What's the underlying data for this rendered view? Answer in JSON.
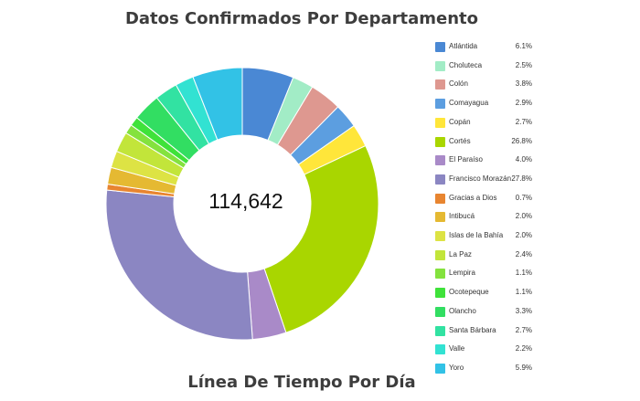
{
  "page": {
    "title": "Datos Confirmados Por Departamento",
    "section_title": "Línea De Tiempo Por Día",
    "center_total": "114,642"
  },
  "chart_data": {
    "type": "pie",
    "donut": true,
    "title": "Datos Confirmados Por Departamento",
    "center_label": "114,642",
    "legend_position": "right",
    "categories": [
      "Atlántida",
      "Choluteca",
      "Colón",
      "Comayagua",
      "Copán",
      "Cortés",
      "El Paraíso",
      "Francisco Morazán",
      "Gracias a Dios",
      "Intibucá",
      "Islas de la Bahía",
      "La Paz",
      "Lempira",
      "Ocotepeque",
      "Olancho",
      "Santa Bárbara",
      "Valle",
      "Yoro"
    ],
    "values": [
      6.1,
      2.5,
      3.8,
      2.9,
      2.7,
      26.8,
      4.0,
      27.8,
      0.7,
      2.0,
      2.0,
      2.4,
      1.1,
      1.1,
      3.3,
      2.7,
      2.2,
      5.9
    ],
    "labels": [
      "6.1%",
      "2.5%",
      "3.8%",
      "2.9%",
      "2.7%",
      "26.8%",
      "4.0%",
      "27.8%",
      "0.7%",
      "2.0%",
      "2.0%",
      "2.4%",
      "1.1%",
      "1.1%",
      "3.3%",
      "2.7%",
      "2.2%",
      "5.9%"
    ],
    "colors": [
      "#4a88d4",
      "#a2ecc6",
      "#de9890",
      "#5c9ee0",
      "#ffe63a",
      "#a9d600",
      "#a98ac8",
      "#8b86c2",
      "#e88530",
      "#e5b932",
      "#dde344",
      "#c2e53a",
      "#84e23e",
      "#3fe23a",
      "#32de62",
      "#32e2a2",
      "#32e2d2",
      "#32c2e6"
    ]
  }
}
